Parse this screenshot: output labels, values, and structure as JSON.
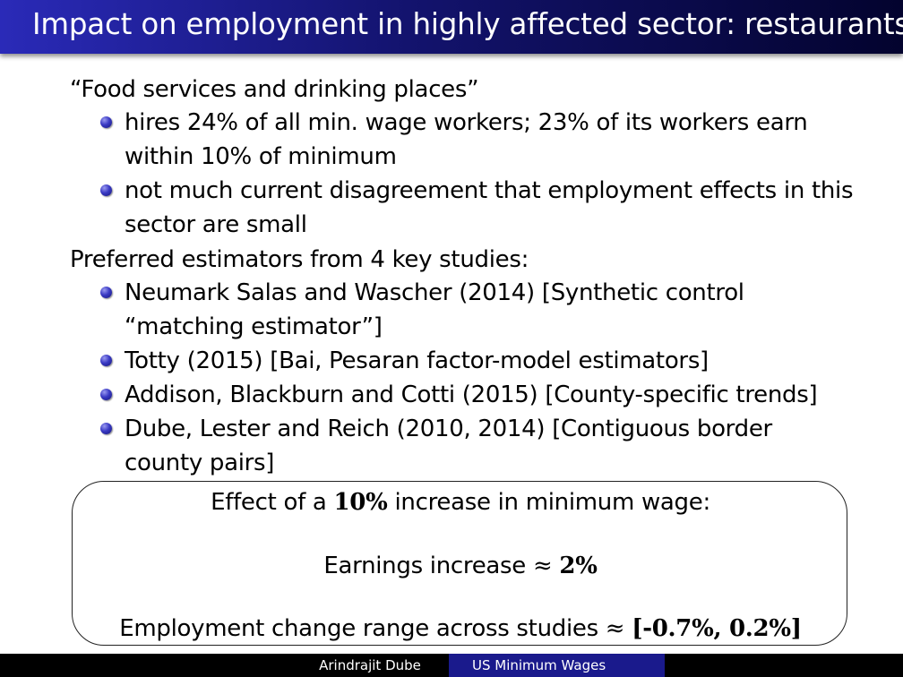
{
  "slide": {
    "title": "Impact on employment in highly affected sector: restaurants"
  },
  "sections": [
    {
      "heading": "“Food services and drinking places”",
      "bullets": [
        {
          "line1": "hires 24% of all min. wage workers; 23% of its workers earn",
          "line2": "within 10% of minimum"
        },
        {
          "line1": "not much current disagreement that employment effects in this",
          "line2": "sector are small"
        }
      ]
    },
    {
      "heading": "Preferred estimators from 4 key studies:",
      "bullets": [
        {
          "line1": "Neumark Salas and Wascher (2014) [Synthetic control",
          "line2": "“matching estimator”]"
        },
        {
          "line1": "Totty (2015) [Bai, Pesaran factor-model estimators]"
        },
        {
          "line1": "Addison, Blackburn and Cotti (2015) [County-specific trends]"
        },
        {
          "line1": "Dube, Lester and Reich (2010, 2014) [Contiguous border",
          "line2": "county pairs]"
        }
      ]
    }
  ],
  "summary_box": {
    "effect_prefix": "Effect of a ",
    "effect_value": "10%",
    "effect_suffix": " increase in minimum wage:",
    "earnings_prefix": "Earnings increase ",
    "approx_symbol": "≈",
    "earnings_value": "2%",
    "employment_prefix": "Employment change range across studies ",
    "employment_value": "[-0.7%, 0.2%]"
  },
  "footer": {
    "author": "Arindrajit Dube",
    "talk_title": "US Minimum Wages"
  }
}
